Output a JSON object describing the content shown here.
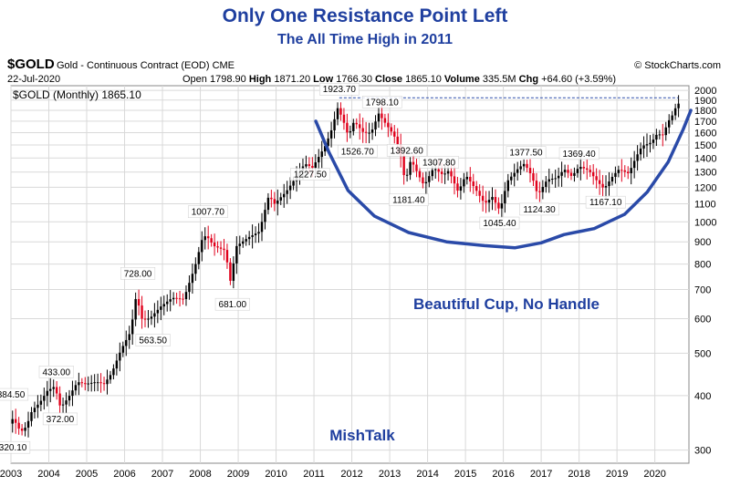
{
  "header": {
    "title": "Only One Resistance Point Left",
    "subtitle": "The All Time High in 2011",
    "symbol": "$GOLD",
    "symbol_desc": "Gold - Continuous Contract (EOD) CME",
    "brand": "© StockCharts.com",
    "date": "22-Jul-2020",
    "open_label": "Open",
    "open": "1798.90",
    "high_label": "High",
    "high": "1871.20",
    "low_label": "Low",
    "low": "1766.30",
    "close_label": "Close",
    "close": "1865.10",
    "volume_label": "Volume",
    "volume": "335.5M",
    "chg_label": "Chg",
    "chg": "+64.60 (+3.59%)",
    "legend": "$GOLD (Monthly) 1865.10",
    "watermark": "MishTalk"
  },
  "colors": {
    "up": "#000000",
    "down": "#e0001b",
    "cup": "#2a4aa8",
    "resistance": "#2a4aa8"
  },
  "chart_data": {
    "type": "candlestick",
    "y_scale": "log",
    "ylim": [
      280,
      2050
    ],
    "y_ticks": [
      300,
      400,
      500,
      600,
      700,
      800,
      900,
      1000,
      1100,
      1200,
      1300,
      1400,
      1500,
      1600,
      1700,
      1800,
      1900,
      2000
    ],
    "x_ticks": [
      "2003",
      "2004",
      "2005",
      "2006",
      "2007",
      "2008",
      "2009",
      "2010",
      "2011",
      "2012",
      "2013",
      "2014",
      "2015",
      "2016",
      "2017",
      "2018",
      "2019",
      "2020"
    ],
    "xlim": [
      2003.0,
      2020.9
    ],
    "price_path": [
      [
        2003.0,
        345
      ],
      [
        2003.1,
        355
      ],
      [
        2003.3,
        330
      ],
      [
        2003.45,
        340
      ],
      [
        2003.6,
        370
      ],
      [
        2003.8,
        385
      ],
      [
        2004.0,
        410
      ],
      [
        2004.2,
        420
      ],
      [
        2004.35,
        375
      ],
      [
        2004.55,
        395
      ],
      [
        2004.8,
        430
      ],
      [
        2005.0,
        425
      ],
      [
        2005.3,
        430
      ],
      [
        2005.5,
        425
      ],
      [
        2005.7,
        450
      ],
      [
        2005.95,
        510
      ],
      [
        2006.2,
        560
      ],
      [
        2006.35,
        680
      ],
      [
        2006.5,
        600
      ],
      [
        2006.7,
        600
      ],
      [
        2007.0,
        640
      ],
      [
        2007.3,
        670
      ],
      [
        2007.6,
        665
      ],
      [
        2007.9,
        790
      ],
      [
        2008.1,
        920
      ],
      [
        2008.2,
        930
      ],
      [
        2008.4,
        880
      ],
      [
        2008.7,
        860
      ],
      [
        2008.83,
        730
      ],
      [
        2009.0,
        880
      ],
      [
        2009.3,
        920
      ],
      [
        2009.6,
        950
      ],
      [
        2009.85,
        1150
      ],
      [
        2010.0,
        1100
      ],
      [
        2010.3,
        1170
      ],
      [
        2010.5,
        1240
      ],
      [
        2010.8,
        1360
      ],
      [
        2011.0,
        1330
      ],
      [
        2011.35,
        1500
      ],
      [
        2011.5,
        1620
      ],
      [
        2011.67,
        1825
      ],
      [
        2011.8,
        1720
      ],
      [
        2011.95,
        1570
      ],
      [
        2012.1,
        1700
      ],
      [
        2012.35,
        1600
      ],
      [
        2012.55,
        1600
      ],
      [
        2012.75,
        1770
      ],
      [
        2012.95,
        1670
      ],
      [
        2013.15,
        1580
      ],
      [
        2013.3,
        1470
      ],
      [
        2013.45,
        1230
      ],
      [
        2013.6,
        1390
      ],
      [
        2013.8,
        1280
      ],
      [
        2013.95,
        1210
      ],
      [
        2014.2,
        1330
      ],
      [
        2014.45,
        1280
      ],
      [
        2014.6,
        1310
      ],
      [
        2014.85,
        1170
      ],
      [
        2015.05,
        1280
      ],
      [
        2015.3,
        1190
      ],
      [
        2015.55,
        1100
      ],
      [
        2015.75,
        1140
      ],
      [
        2015.95,
        1060
      ],
      [
        2016.15,
        1240
      ],
      [
        2016.45,
        1330
      ],
      [
        2016.6,
        1360
      ],
      [
        2016.8,
        1270
      ],
      [
        2016.95,
        1150
      ],
      [
        2017.2,
        1250
      ],
      [
        2017.45,
        1260
      ],
      [
        2017.65,
        1320
      ],
      [
        2017.85,
        1270
      ],
      [
        2018.05,
        1340
      ],
      [
        2018.3,
        1310
      ],
      [
        2018.55,
        1230
      ],
      [
        2018.7,
        1190
      ],
      [
        2018.95,
        1280
      ],
      [
        2019.1,
        1320
      ],
      [
        2019.35,
        1290
      ],
      [
        2019.55,
        1410
      ],
      [
        2019.7,
        1490
      ],
      [
        2019.95,
        1520
      ],
      [
        2020.1,
        1590
      ],
      [
        2020.25,
        1580
      ],
      [
        2020.4,
        1700
      ],
      [
        2020.55,
        1780
      ],
      [
        2020.62,
        1865
      ]
    ],
    "annotations": [
      {
        "x": 2003.0,
        "price": 384.5,
        "text": "384.50",
        "pos": "above"
      },
      {
        "x": 2003.05,
        "price": 320.1,
        "text": "320.10",
        "pos": "below"
      },
      {
        "x": 2004.2,
        "price": 433.0,
        "text": "433.00",
        "pos": "above"
      },
      {
        "x": 2004.3,
        "price": 372.0,
        "text": "372.00",
        "pos": "below"
      },
      {
        "x": 2006.35,
        "price": 728.0,
        "text": "728.00",
        "pos": "above"
      },
      {
        "x": 2006.75,
        "price": 563.5,
        "text": "563.50",
        "pos": "below"
      },
      {
        "x": 2008.2,
        "price": 1007.7,
        "text": "1007.70",
        "pos": "above"
      },
      {
        "x": 2008.85,
        "price": 681.0,
        "text": "681.00",
        "pos": "below"
      },
      {
        "x": 2010.9,
        "price": 1227.5,
        "text": "1227.50",
        "pos": "above"
      },
      {
        "x": 2011.67,
        "price": 1923.7,
        "text": "1923.70",
        "pos": "above"
      },
      {
        "x": 2012.8,
        "price": 1798.1,
        "text": "1798.10",
        "pos": "above"
      },
      {
        "x": 2012.15,
        "price": 1526.7,
        "text": "1526.70",
        "pos": "below"
      },
      {
        "x": 2013.45,
        "price": 1392.6,
        "text": "1392.60",
        "pos": "above"
      },
      {
        "x": 2013.5,
        "price": 1181.4,
        "text": "1181.40",
        "pos": "below"
      },
      {
        "x": 2014.3,
        "price": 1307.8,
        "text": "1307.80",
        "pos": "above"
      },
      {
        "x": 2015.9,
        "price": 1045.4,
        "text": "1045.40",
        "pos": "below"
      },
      {
        "x": 2016.6,
        "price": 1377.5,
        "text": "1377.50",
        "pos": "above"
      },
      {
        "x": 2016.95,
        "price": 1124.3,
        "text": "1124.30",
        "pos": "below"
      },
      {
        "x": 2018.0,
        "price": 1369.4,
        "text": "1369.40",
        "pos": "above"
      },
      {
        "x": 2018.7,
        "price": 1167.1,
        "text": "1167.10",
        "pos": "below"
      }
    ],
    "resistance_level": 1923.7,
    "cup_curve": [
      [
        2011.05,
        1700
      ],
      [
        2011.4,
        1440
      ],
      [
        2011.9,
        1180
      ],
      [
        2012.6,
        1030
      ],
      [
        2013.5,
        945
      ],
      [
        2014.5,
        900
      ],
      [
        2015.5,
        882
      ],
      [
        2016.3,
        872
      ],
      [
        2017.0,
        895
      ],
      [
        2017.6,
        935
      ],
      [
        2018.4,
        965
      ],
      [
        2019.2,
        1040
      ],
      [
        2019.8,
        1170
      ],
      [
        2020.35,
        1370
      ],
      [
        2020.75,
        1630
      ],
      [
        2020.95,
        1800
      ]
    ],
    "annotation_text": "Beautiful Cup, No Handle"
  }
}
